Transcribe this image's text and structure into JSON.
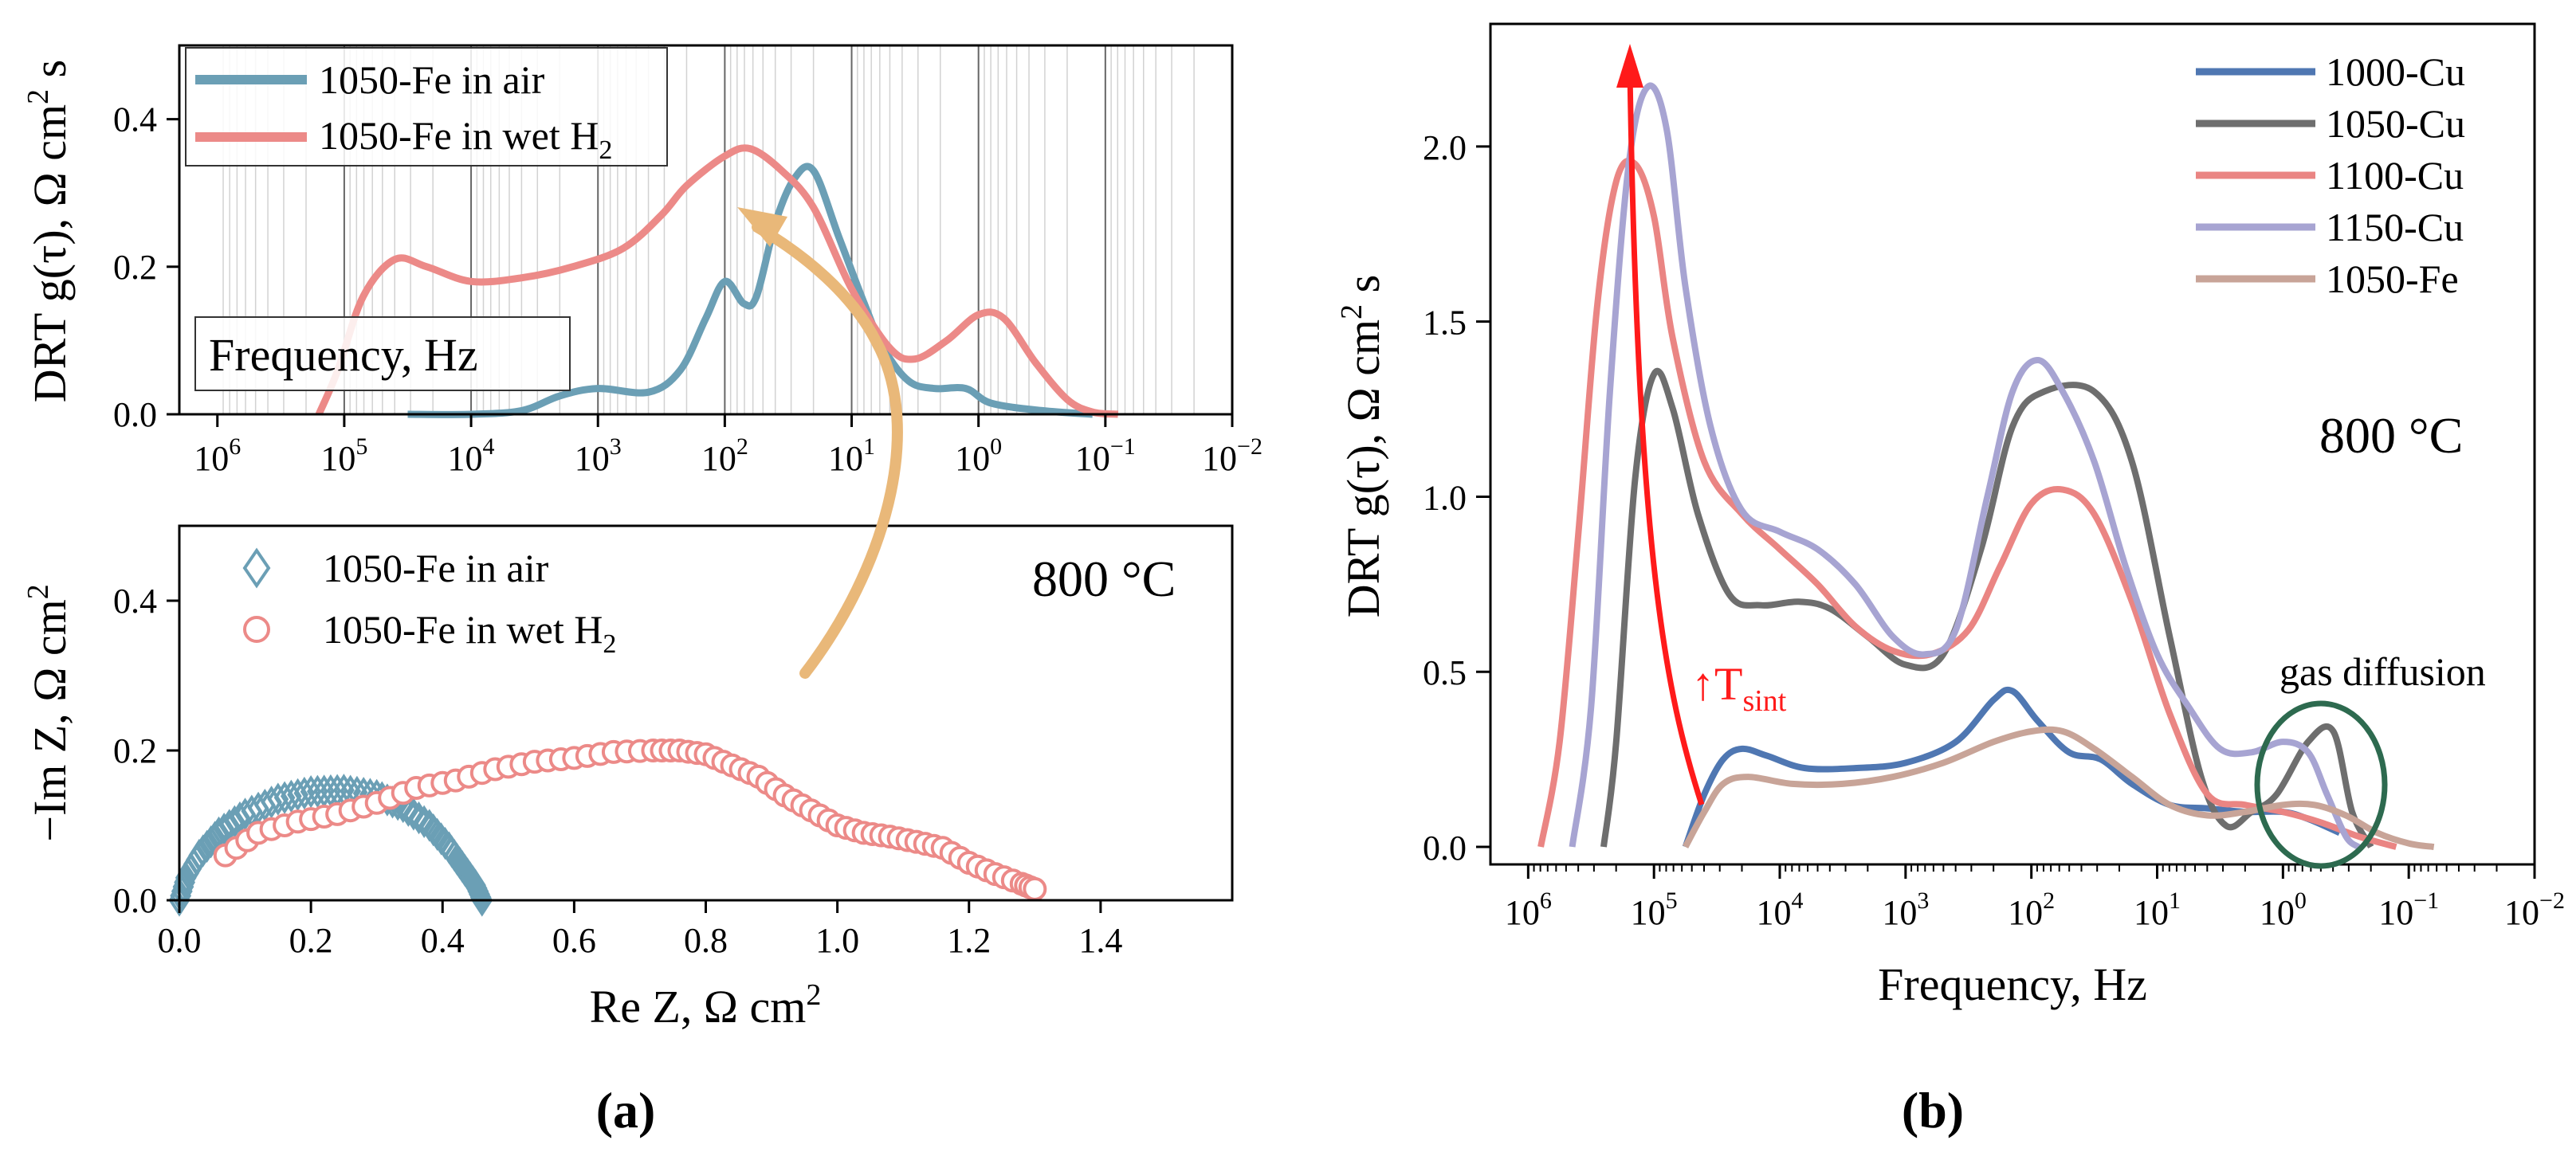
{
  "colors": {
    "air": "#6b9fb5",
    "wet": "#ec8a88",
    "c1000": "#4f77b2",
    "c1050": "#6e6e6e",
    "c1100": "#ea8583",
    "c1150": "#a7a4d2",
    "cfe": "#c8a498",
    "arrow_orange": "#e9b879",
    "arrow_red": "#ff1a1a",
    "ellipse": "#2d6a4f"
  },
  "panel_labels": {
    "a": "(a)",
    "b": "(b)"
  },
  "chart_data": [
    {
      "id": "a-top",
      "type": "line",
      "x_scale": "log-reversed",
      "xlim_log10": [
        6.3,
        -2
      ],
      "ylim": [
        0,
        0.5
      ],
      "x_tick_labels": [
        {
          "base": "10",
          "exp": "6"
        },
        {
          "base": "10",
          "exp": "5"
        },
        {
          "base": "10",
          "exp": "4"
        },
        {
          "base": "10",
          "exp": "3"
        },
        {
          "base": "10",
          "exp": "2"
        },
        {
          "base": "10",
          "exp": "1"
        },
        {
          "base": "10",
          "exp": "0"
        },
        {
          "base": "10",
          "exp": "−1"
        },
        {
          "base": "10",
          "exp": "−2"
        }
      ],
      "y_ticks": [
        "0.0",
        "0.2",
        "0.4"
      ],
      "ylabel": {
        "text": "DRT g(τ), Ω cm",
        "sup": "2",
        "suffix": " s"
      },
      "annotation": "Frequency, Hz",
      "legend": [
        {
          "text": "1050-Fe in air",
          "sub": ""
        },
        {
          "text": "1050-Fe in wet H",
          "sub": "2"
        }
      ],
      "series": [
        {
          "name": "1050-Fe in air",
          "color_key": "air",
          "points": [
            [
              4.5,
              0
            ],
            [
              4.0,
              0
            ],
            [
              3.6,
              0.005
            ],
            [
              3.3,
              0.025
            ],
            [
              3.0,
              0.035
            ],
            [
              2.6,
              0.03
            ],
            [
              2.35,
              0.06
            ],
            [
              2.15,
              0.13
            ],
            [
              2.0,
              0.18
            ],
            [
              1.85,
              0.15
            ],
            [
              1.75,
              0.16
            ],
            [
              1.6,
              0.26
            ],
            [
              1.45,
              0.32
            ],
            [
              1.3,
              0.33
            ],
            [
              1.1,
              0.24
            ],
            [
              0.9,
              0.15
            ],
            [
              0.75,
              0.09
            ],
            [
              0.55,
              0.045
            ],
            [
              0.35,
              0.035
            ],
            [
              0.1,
              0.035
            ],
            [
              -0.1,
              0.015
            ],
            [
              -0.5,
              0.005
            ],
            [
              -0.9,
              0
            ]
          ]
        },
        {
          "name": "1050-Fe in wet H2",
          "color_key": "wet",
          "points": [
            [
              5.2,
              0
            ],
            [
              5.05,
              0.06
            ],
            [
              4.85,
              0.16
            ],
            [
              4.6,
              0.21
            ],
            [
              4.35,
              0.2
            ],
            [
              4.0,
              0.18
            ],
            [
              3.6,
              0.185
            ],
            [
              3.2,
              0.2
            ],
            [
              2.8,
              0.225
            ],
            [
              2.5,
              0.27
            ],
            [
              2.3,
              0.31
            ],
            [
              2.0,
              0.35
            ],
            [
              1.8,
              0.36
            ],
            [
              1.55,
              0.33
            ],
            [
              1.3,
              0.28
            ],
            [
              1.0,
              0.17
            ],
            [
              0.7,
              0.09
            ],
            [
              0.5,
              0.075
            ],
            [
              0.25,
              0.1
            ],
            [
              0.0,
              0.135
            ],
            [
              -0.2,
              0.13
            ],
            [
              -0.45,
              0.07
            ],
            [
              -0.7,
              0.02
            ],
            [
              -0.9,
              0.003
            ],
            [
              -1.1,
              0
            ]
          ]
        }
      ]
    },
    {
      "id": "a-bottom",
      "type": "scatter",
      "xlim": [
        0,
        1.6
      ],
      "ylim": [
        0,
        0.5
      ],
      "x_ticks": [
        "0.0",
        "0.2",
        "0.4",
        "0.6",
        "0.8",
        "1.0",
        "1.2",
        "1.4"
      ],
      "y_ticks": [
        "0.0",
        "0.2",
        "0.4"
      ],
      "xlabel": {
        "text": "Re Z, Ω cm",
        "sup": "2"
      },
      "ylabel": {
        "text": "−Im Z, Ω cm",
        "sup": "2"
      },
      "annotation": "800 °C",
      "legend": [
        {
          "text": "1050-Fe in air",
          "sub": ""
        },
        {
          "text": "1050-Fe in wet H",
          "sub": "2"
        }
      ],
      "series": [
        {
          "name": "1050-Fe in air",
          "color_key": "air",
          "marker": "diamond",
          "points": [
            [
              0.0,
              0.0
            ],
            [
              0.01,
              0.03
            ],
            [
              0.03,
              0.06
            ],
            [
              0.06,
              0.09
            ],
            [
              0.1,
              0.115
            ],
            [
              0.15,
              0.135
            ],
            [
              0.2,
              0.145
            ],
            [
              0.25,
              0.147
            ],
            [
              0.3,
              0.14
            ],
            [
              0.34,
              0.125
            ],
            [
              0.38,
              0.1
            ],
            [
              0.41,
              0.07
            ],
            [
              0.43,
              0.045
            ],
            [
              0.45,
              0.02
            ],
            [
              0.46,
              0.0
            ]
          ]
        },
        {
          "name": "1050-Fe in wet H2",
          "color_key": "wet",
          "marker": "circle",
          "points": [
            [
              0.07,
              0.06
            ],
            [
              0.12,
              0.09
            ],
            [
              0.18,
              0.105
            ],
            [
              0.24,
              0.115
            ],
            [
              0.3,
              0.13
            ],
            [
              0.36,
              0.15
            ],
            [
              0.42,
              0.16
            ],
            [
              0.48,
              0.175
            ],
            [
              0.54,
              0.185
            ],
            [
              0.6,
              0.19
            ],
            [
              0.66,
              0.198
            ],
            [
              0.72,
              0.2
            ],
            [
              0.76,
              0.2
            ],
            [
              0.8,
              0.195
            ],
            [
              0.84,
              0.18
            ],
            [
              0.88,
              0.165
            ],
            [
              0.92,
              0.14
            ],
            [
              0.96,
              0.12
            ],
            [
              1.0,
              0.1
            ],
            [
              1.04,
              0.09
            ],
            [
              1.08,
              0.085
            ],
            [
              1.12,
              0.078
            ],
            [
              1.16,
              0.07
            ],
            [
              1.2,
              0.05
            ],
            [
              1.24,
              0.035
            ],
            [
              1.28,
              0.022
            ],
            [
              1.3,
              0.015
            ]
          ]
        }
      ]
    },
    {
      "id": "b",
      "type": "line",
      "x_scale": "log-reversed",
      "xlim_log10": [
        6.3,
        -2
      ],
      "ylim": [
        -0.05,
        2.35
      ],
      "x_tick_labels": [
        {
          "base": "10",
          "exp": "6"
        },
        {
          "base": "10",
          "exp": "5"
        },
        {
          "base": "10",
          "exp": "4"
        },
        {
          "base": "10",
          "exp": "3"
        },
        {
          "base": "10",
          "exp": "2"
        },
        {
          "base": "10",
          "exp": "1"
        },
        {
          "base": "10",
          "exp": "0"
        },
        {
          "base": "10",
          "exp": "−1"
        },
        {
          "base": "10",
          "exp": "−2"
        }
      ],
      "y_ticks": [
        "0.0",
        "0.5",
        "1.0",
        "1.5",
        "2.0"
      ],
      "xlabel": {
        "text": "Frequency, Hz",
        "sup": ""
      },
      "ylabel": {
        "text": "DRT g(τ), Ω cm",
        "sup": "2",
        "suffix": " s"
      },
      "temperature": "800 °C",
      "gas_label": "gas diffusion",
      "arrow_label": {
        "prefix": "↑T",
        "sub": "sint"
      },
      "legend": [
        "1000-Cu",
        "1050-Cu",
        "1100-Cu",
        "1150-Cu",
        "1050-Fe"
      ],
      "series": [
        {
          "name": "1000-Cu",
          "color_key": "c1000",
          "points": [
            [
              4.75,
              0
            ],
            [
              4.6,
              0.15
            ],
            [
              4.45,
              0.25
            ],
            [
              4.3,
              0.28
            ],
            [
              4.1,
              0.26
            ],
            [
              3.8,
              0.225
            ],
            [
              3.4,
              0.225
            ],
            [
              3.0,
              0.24
            ],
            [
              2.6,
              0.3
            ],
            [
              2.3,
              0.42
            ],
            [
              2.15,
              0.445
            ],
            [
              1.95,
              0.36
            ],
            [
              1.7,
              0.27
            ],
            [
              1.45,
              0.25
            ],
            [
              1.2,
              0.18
            ],
            [
              0.9,
              0.12
            ],
            [
              0.6,
              0.11
            ],
            [
              0.3,
              0.1
            ],
            [
              0.0,
              0.1
            ],
            [
              -0.2,
              0.08
            ],
            [
              -0.45,
              0.04
            ]
          ]
        },
        {
          "name": "1050-Cu",
          "color_key": "c1050",
          "points": [
            [
              5.4,
              0
            ],
            [
              5.3,
              0.3
            ],
            [
              5.15,
              1.05
            ],
            [
              5.0,
              1.35
            ],
            [
              4.85,
              1.25
            ],
            [
              4.65,
              0.95
            ],
            [
              4.4,
              0.72
            ],
            [
              4.15,
              0.69
            ],
            [
              3.85,
              0.7
            ],
            [
              3.6,
              0.68
            ],
            [
              3.3,
              0.6
            ],
            [
              3.0,
              0.52
            ],
            [
              2.7,
              0.55
            ],
            [
              2.4,
              0.85
            ],
            [
              2.15,
              1.2
            ],
            [
              1.9,
              1.3
            ],
            [
              1.5,
              1.3
            ],
            [
              1.2,
              1.1
            ],
            [
              0.9,
              0.6
            ],
            [
              0.65,
              0.2
            ],
            [
              0.45,
              0.06
            ],
            [
              0.25,
              0.1
            ],
            [
              0.05,
              0.15
            ],
            [
              -0.2,
              0.3
            ],
            [
              -0.4,
              0.33
            ],
            [
              -0.55,
              0.1
            ],
            [
              -0.7,
              0
            ]
          ]
        },
        {
          "name": "1100-Cu",
          "color_key": "c1100",
          "points": [
            [
              5.9,
              0
            ],
            [
              5.75,
              0.3
            ],
            [
              5.6,
              0.9
            ],
            [
              5.45,
              1.55
            ],
            [
              5.3,
              1.9
            ],
            [
              5.15,
              1.95
            ],
            [
              5.0,
              1.8
            ],
            [
              4.85,
              1.45
            ],
            [
              4.6,
              1.1
            ],
            [
              4.3,
              0.95
            ],
            [
              4.0,
              0.85
            ],
            [
              3.7,
              0.75
            ],
            [
              3.4,
              0.63
            ],
            [
              3.1,
              0.56
            ],
            [
              2.8,
              0.55
            ],
            [
              2.5,
              0.62
            ],
            [
              2.25,
              0.8
            ],
            [
              2.0,
              0.98
            ],
            [
              1.75,
              1.02
            ],
            [
              1.5,
              0.95
            ],
            [
              1.2,
              0.7
            ],
            [
              0.9,
              0.38
            ],
            [
              0.6,
              0.15
            ],
            [
              0.3,
              0.12
            ],
            [
              0.0,
              0.1
            ],
            [
              -0.3,
              0.07
            ],
            [
              -0.6,
              0.03
            ],
            [
              -0.9,
              0
            ]
          ]
        },
        {
          "name": "1150-Cu",
          "color_key": "c1150",
          "points": [
            [
              5.65,
              0
            ],
            [
              5.5,
              0.4
            ],
            [
              5.35,
              1.3
            ],
            [
              5.2,
              1.95
            ],
            [
              5.05,
              2.17
            ],
            [
              4.9,
              2.05
            ],
            [
              4.75,
              1.6
            ],
            [
              4.55,
              1.2
            ],
            [
              4.3,
              0.96
            ],
            [
              4.0,
              0.9
            ],
            [
              3.7,
              0.85
            ],
            [
              3.4,
              0.75
            ],
            [
              3.1,
              0.6
            ],
            [
              2.85,
              0.55
            ],
            [
              2.6,
              0.62
            ],
            [
              2.35,
              1.0
            ],
            [
              2.15,
              1.3
            ],
            [
              1.95,
              1.39
            ],
            [
              1.75,
              1.3
            ],
            [
              1.5,
              1.1
            ],
            [
              1.25,
              0.8
            ],
            [
              1.0,
              0.55
            ],
            [
              0.75,
              0.4
            ],
            [
              0.5,
              0.28
            ],
            [
              0.25,
              0.27
            ],
            [
              0.0,
              0.3
            ],
            [
              -0.2,
              0.27
            ],
            [
              -0.35,
              0.15
            ],
            [
              -0.5,
              0.03
            ],
            [
              -0.6,
              0
            ]
          ]
        },
        {
          "name": "1050-Fe",
          "color_key": "cfe",
          "points": [
            [
              4.75,
              0
            ],
            [
              4.6,
              0.1
            ],
            [
              4.45,
              0.18
            ],
            [
              4.25,
              0.2
            ],
            [
              3.9,
              0.18
            ],
            [
              3.5,
              0.18
            ],
            [
              3.1,
              0.2
            ],
            [
              2.7,
              0.24
            ],
            [
              2.3,
              0.3
            ],
            [
              2.0,
              0.33
            ],
            [
              1.75,
              0.33
            ],
            [
              1.5,
              0.28
            ],
            [
              1.2,
              0.2
            ],
            [
              0.9,
              0.12
            ],
            [
              0.6,
              0.09
            ],
            [
              0.3,
              0.1
            ],
            [
              0.0,
              0.12
            ],
            [
              -0.25,
              0.12
            ],
            [
              -0.5,
              0.09
            ],
            [
              -0.75,
              0.04
            ],
            [
              -1.0,
              0.01
            ],
            [
              -1.2,
              0
            ]
          ]
        }
      ]
    }
  ]
}
